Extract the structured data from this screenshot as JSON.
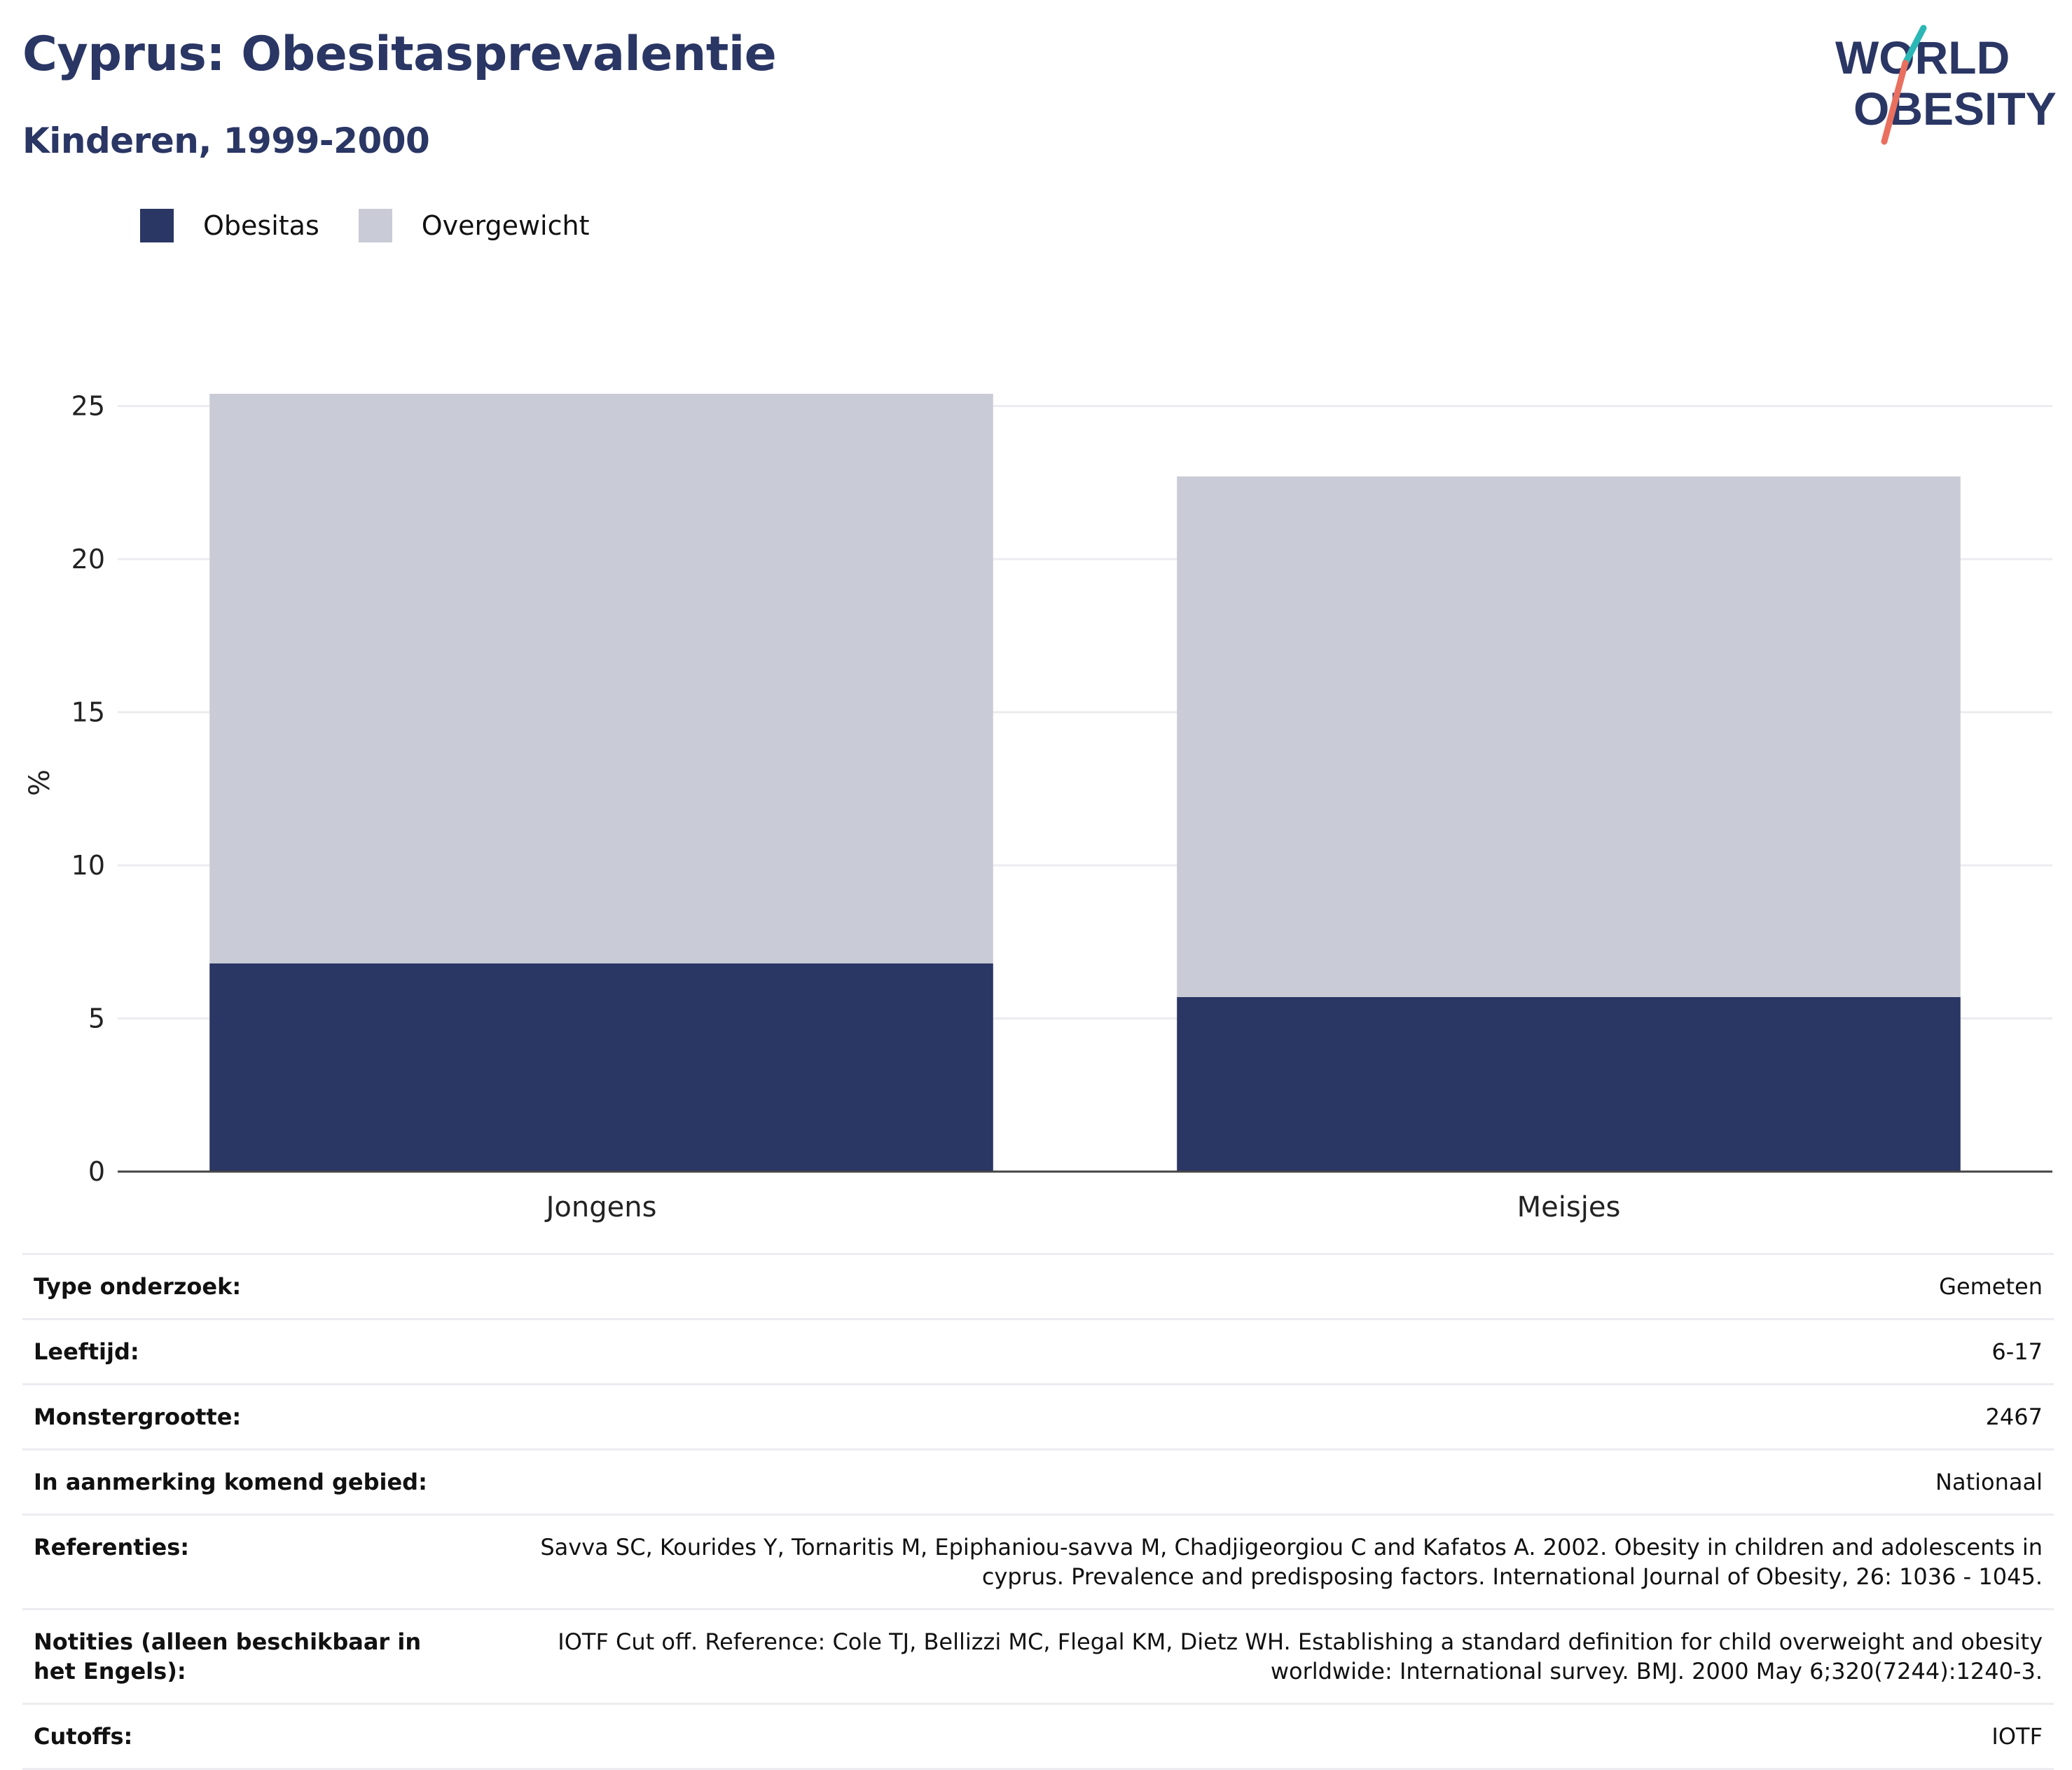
{
  "header": {
    "title": "Cyprus: Obesitasprevalentie",
    "subtitle": "Kinderen, 1999-2000"
  },
  "logo": {
    "line1": "WORLD",
    "line2": "OBESITY",
    "colors": {
      "text": "#2a3664",
      "accent_teal": "#2bb7b5",
      "accent_coral": "#e9705f"
    }
  },
  "legend": [
    {
      "label": "Obesitas",
      "color": "#2a3664"
    },
    {
      "label": "Overgewicht",
      "color": "#c9cbd6"
    }
  ],
  "chart_data": {
    "type": "bar",
    "stacked": true,
    "categories": [
      "Jongens",
      "Meisjes"
    ],
    "series": [
      {
        "name": "Obesitas",
        "values": [
          6.8,
          5.7
        ],
        "color": "#2a3664"
      },
      {
        "name": "Overgewicht",
        "values": [
          18.6,
          17.0
        ],
        "color": "#c9cbd6"
      }
    ],
    "totals": [
      25.4,
      22.7
    ],
    "ylabel": "%",
    "ylim": [
      0,
      25.4
    ],
    "yticks": [
      0,
      5,
      10,
      15,
      20,
      25
    ],
    "grid": true,
    "legend_position": "top-left"
  },
  "details": [
    {
      "label": "Type onderzoek:",
      "value": "Gemeten"
    },
    {
      "label": "Leeftijd:",
      "value": "6-17"
    },
    {
      "label": "Monstergrootte:",
      "value": "2467"
    },
    {
      "label": "In aanmerking komend gebied:",
      "value": "Nationaal"
    },
    {
      "label": "Referenties:",
      "value": "Savva SC, Kourides Y, Tornaritis M, Epiphaniou-savva M, Chadjigeorgiou C and Kafatos A. 2002. Obesity in children and adolescents in cyprus. Prevalence and predisposing factors. International Journal of Obesity, 26: 1036 - 1045."
    },
    {
      "label": "Notities (alleen beschikbaar in het Engels):",
      "value": "IOTF Cut off. Reference: Cole TJ, Bellizzi MC, Flegal KM, Dietz WH. Establishing a standard definition for child overweight and obesity worldwide: International survey. BMJ. 2000 May 6;320(7244):1240-3."
    },
    {
      "label": "Cutoffs:",
      "value": "IOTF"
    }
  ]
}
